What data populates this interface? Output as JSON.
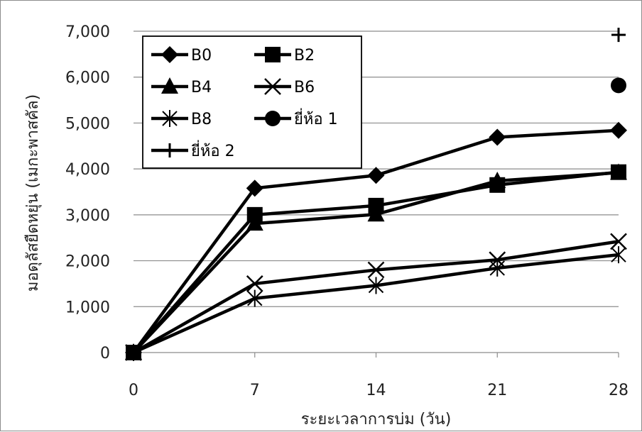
{
  "chart_data": {
    "type": "line",
    "xlabel": "ระยะเวลาการบ่ม (วัน)",
    "ylabel": "มอดุลัสยืดหยุ่น (เมกะพาสคัล)",
    "x": [
      0,
      7,
      14,
      21,
      28
    ],
    "x_tick_labels": [
      "0",
      "7",
      "14",
      "21",
      "28"
    ],
    "y_tick_labels": [
      "0",
      "1,000",
      "2,000",
      "3,000",
      "4,000",
      "5,000",
      "6,000",
      "7,000"
    ],
    "ylim": [
      0,
      7000
    ],
    "grid": "horizontal",
    "legend_position": "top-left",
    "series": [
      {
        "name": "B0",
        "marker": "diamond",
        "values": [
          0,
          3580,
          3860,
          4690,
          4840
        ]
      },
      {
        "name": "B2",
        "marker": "square",
        "values": [
          0,
          3000,
          3200,
          3650,
          3930
        ]
      },
      {
        "name": "B4",
        "marker": "triangle",
        "values": [
          0,
          2810,
          3010,
          3740,
          3920
        ]
      },
      {
        "name": "B6",
        "marker": "x",
        "values": [
          0,
          1500,
          1800,
          2020,
          2420
        ]
      },
      {
        "name": "B8",
        "marker": "asterisk",
        "values": [
          0,
          1180,
          1460,
          1840,
          2130
        ]
      },
      {
        "name": "ยี่ห้อ 1",
        "marker": "circle",
        "values": [
          null,
          null,
          null,
          null,
          5820
        ]
      },
      {
        "name": "ยี่ห้อ 2",
        "marker": "plus",
        "values": [
          null,
          null,
          null,
          null,
          6920
        ]
      }
    ]
  }
}
